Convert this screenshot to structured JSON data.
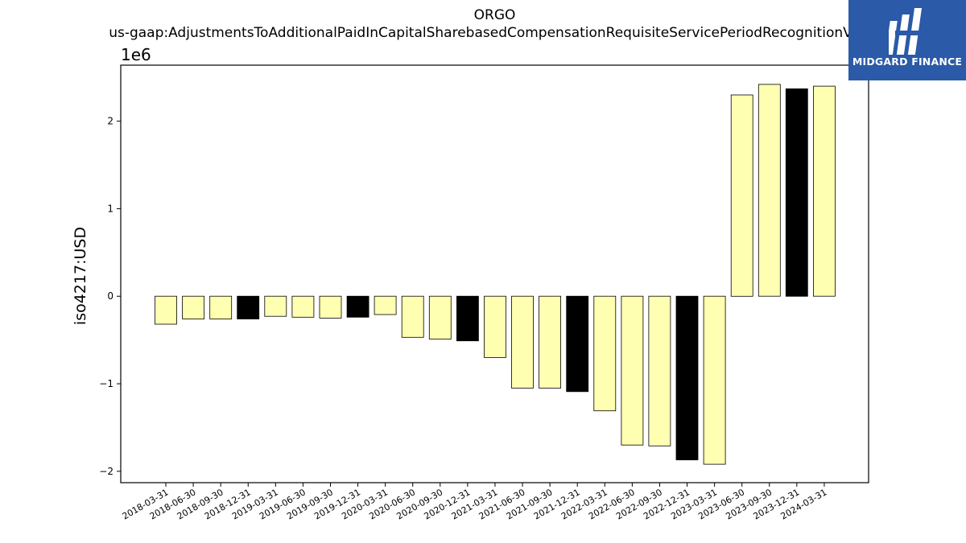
{
  "chart_data": {
    "type": "bar",
    "title": "ORGO",
    "subtitle": "us-gaap:AdjustmentsToAdditionalPaidInCapitalSharebasedCompensationRequisiteServicePeriodRecognitionValue",
    "ylabel": "iso4217:USD",
    "xlabel": "",
    "scale_label": "1e6",
    "ylim": [
      -2.13,
      2.64
    ],
    "yticks": [
      -2,
      -1,
      0,
      1,
      2
    ],
    "grid": false,
    "categories": [
      "2018-03-31",
      "2018-06-30",
      "2018-09-30",
      "2018-12-31",
      "2019-03-31",
      "2019-06-30",
      "2019-09-30",
      "2019-12-31",
      "2020-03-31",
      "2020-06-30",
      "2020-09-30",
      "2020-12-31",
      "2021-03-31",
      "2021-06-30",
      "2021-09-30",
      "2021-12-31",
      "2022-03-31",
      "2022-06-30",
      "2022-09-30",
      "2022-12-31",
      "2023-03-31",
      "2023-06-30",
      "2023-09-30",
      "2023-12-31",
      "2024-03-31"
    ],
    "values": [
      -0.32,
      -0.26,
      -0.26,
      -0.26,
      -0.23,
      -0.24,
      -0.25,
      -0.24,
      -0.21,
      -0.47,
      -0.49,
      -0.51,
      -0.7,
      -1.05,
      -1.05,
      -1.09,
      -1.31,
      -1.7,
      -1.71,
      -1.87,
      -1.92,
      2.3,
      2.42,
      2.37,
      2.4
    ],
    "highlight": [
      false,
      false,
      false,
      true,
      false,
      false,
      false,
      true,
      false,
      false,
      false,
      true,
      false,
      false,
      false,
      true,
      false,
      false,
      false,
      true,
      false,
      false,
      false,
      true,
      false
    ],
    "colors": {
      "bar": "#ffffb2",
      "highlight": "#000000",
      "edge": "#000000"
    }
  },
  "logo": {
    "text": "MIDGARD FINANCE",
    "background": "#2a5aa8"
  }
}
